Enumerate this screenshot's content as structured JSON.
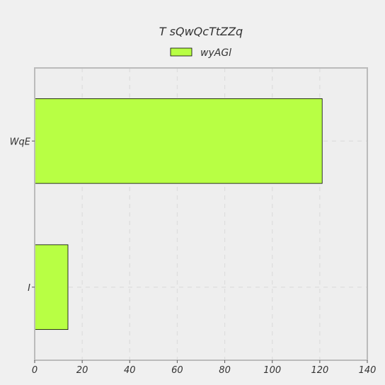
{
  "chart_data": {
    "type": "bar",
    "orientation": "horizontal",
    "title": "T  sQwQcTtZZq",
    "xlabel": "",
    "ylabel": "",
    "categories": [
      "WqE",
      "I"
    ],
    "series": [
      {
        "name": "wyAGl",
        "values": [
          121,
          14
        ]
      }
    ],
    "xlim": [
      0,
      140
    ],
    "xticks": [
      "0",
      "20",
      "40",
      "60",
      "80",
      "100",
      "120",
      "140"
    ],
    "grid": true,
    "legend": "top-center",
    "colors": {
      "bar": "#b8ff44",
      "bar_edge": "#000000",
      "frame": "#bbbbbb",
      "plot_bg": "#eeeeee",
      "grid": "#dddddd"
    }
  }
}
